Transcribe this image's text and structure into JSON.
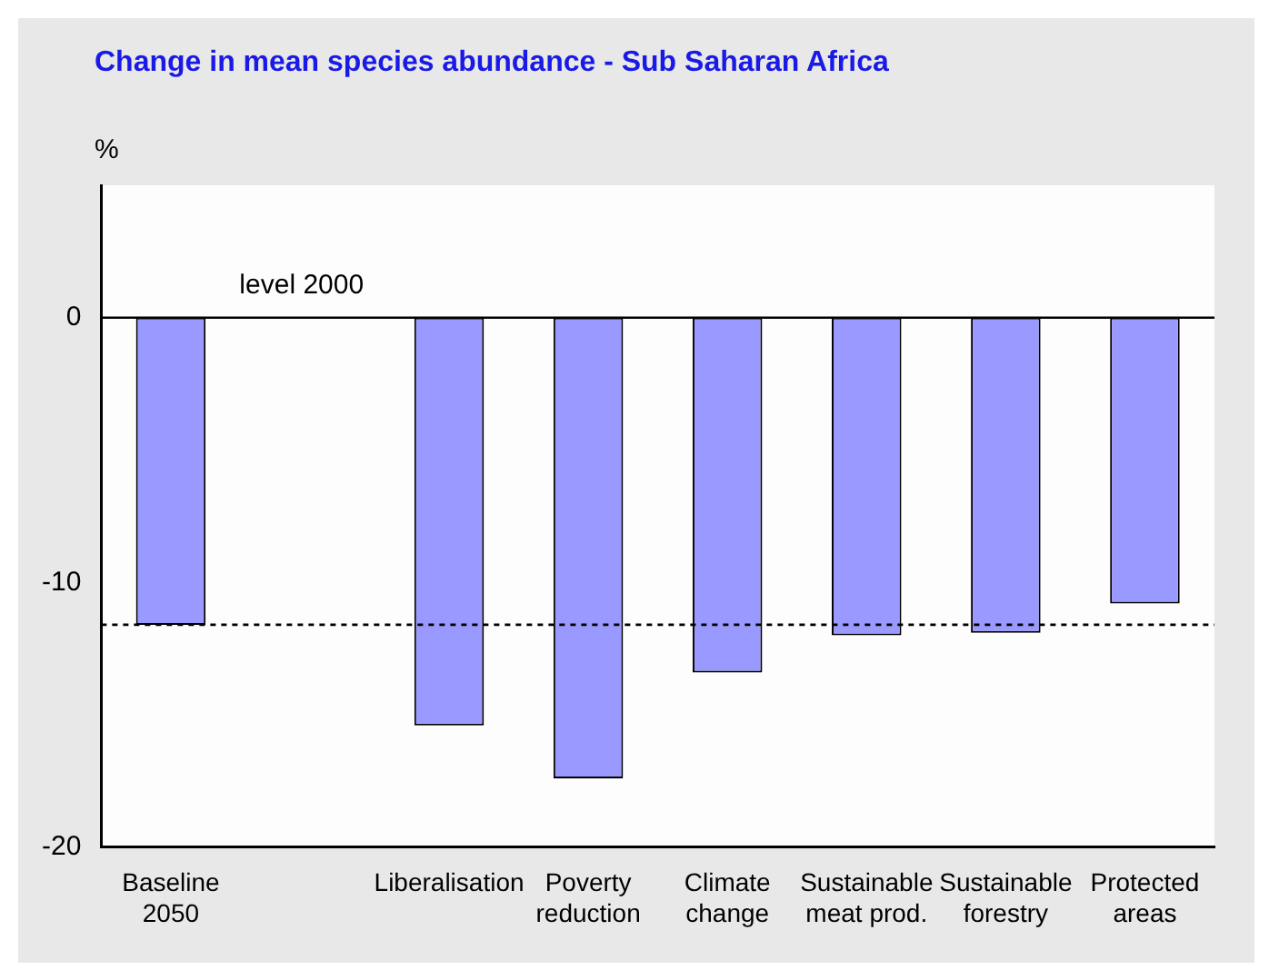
{
  "chart_data": {
    "type": "bar",
    "title": "Change in mean species abundance - Sub Saharan Africa",
    "ylabel": "%",
    "categories": [
      "Baseline\n2050",
      null,
      "Liberalisation",
      "Poverty\nreduction",
      "Climate\nchange",
      "Sustainable\nmeat prod.",
      "Sustainable\nforestry",
      "Protected\nareas"
    ],
    "values": [
      -11.6,
      null,
      -15.4,
      -17.4,
      -13.4,
      -12.0,
      -11.9,
      -10.8
    ],
    "color": "#9999ff",
    "ylim": [
      -20,
      5
    ],
    "yticks": [
      -20,
      -10,
      0
    ],
    "grid": false,
    "legend": false,
    "ref_lines": [
      {
        "axis": "y",
        "value": 0,
        "label": "level 2000",
        "line_style": "solid",
        "color": "#000000"
      },
      {
        "axis": "y",
        "value": -11.6,
        "line_style": "dashed",
        "color": "#000000"
      }
    ]
  }
}
